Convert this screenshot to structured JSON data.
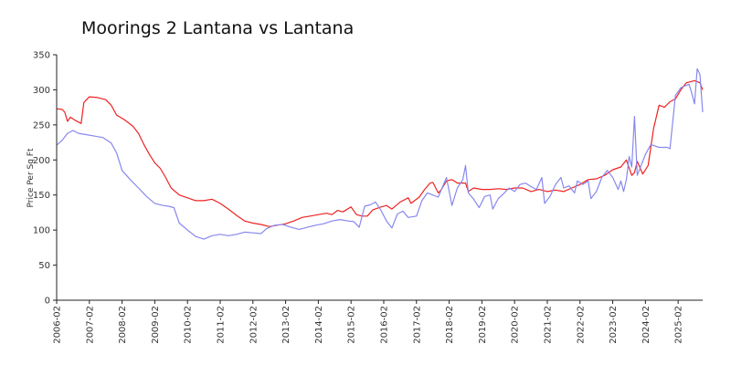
{
  "chart_data": {
    "type": "line",
    "title": "Moorings 2 Lantana vs Lantana",
    "xlabel": "",
    "ylabel": "Price Per Sq Ft",
    "ylim": [
      0,
      350
    ],
    "xlim": [
      "2006-02",
      "2025-11"
    ],
    "grid": false,
    "legend": "none",
    "y_ticks": [
      0,
      50,
      100,
      150,
      200,
      250,
      300,
      350
    ],
    "x_ticks": [
      "2006-02",
      "2007-02",
      "2008-02",
      "2009-02",
      "2010-02",
      "2011-02",
      "2012-02",
      "2013-02",
      "2014-02",
      "2015-02",
      "2016-02",
      "2017-02",
      "2018-02",
      "2019-02",
      "2020-02",
      "2021-02",
      "2022-02",
      "2023-02",
      "2024-02",
      "2025-02"
    ],
    "series": [
      {
        "color": "#ee2222",
        "points": [
          [
            "2006-02",
            273
          ],
          [
            "2006-04",
            272
          ],
          [
            "2006-05",
            268
          ],
          [
            "2006-06",
            255
          ],
          [
            "2006-07",
            261
          ],
          [
            "2006-09",
            256
          ],
          [
            "2006-11",
            252
          ],
          [
            "2006-12",
            282
          ],
          [
            "2007-02",
            290
          ],
          [
            "2007-05",
            289
          ],
          [
            "2007-08",
            286
          ],
          [
            "2007-10",
            278
          ],
          [
            "2007-12",
            264
          ],
          [
            "2008-03",
            257
          ],
          [
            "2008-06",
            248
          ],
          [
            "2008-08",
            238
          ],
          [
            "2008-10",
            222
          ],
          [
            "2008-12",
            208
          ],
          [
            "2009-02",
            196
          ],
          [
            "2009-04",
            188
          ],
          [
            "2009-06",
            175
          ],
          [
            "2009-08",
            160
          ],
          [
            "2009-11",
            150
          ],
          [
            "2010-02",
            146
          ],
          [
            "2010-05",
            142
          ],
          [
            "2010-08",
            142
          ],
          [
            "2010-11",
            144
          ],
          [
            "2011-02",
            138
          ],
          [
            "2011-05",
            130
          ],
          [
            "2011-08",
            121
          ],
          [
            "2011-11",
            113
          ],
          [
            "2012-02",
            110
          ],
          [
            "2012-05",
            108
          ],
          [
            "2012-08",
            105
          ],
          [
            "2012-11",
            107
          ],
          [
            "2013-02",
            109
          ],
          [
            "2013-05",
            113
          ],
          [
            "2013-08",
            118
          ],
          [
            "2013-11",
            120
          ],
          [
            "2014-02",
            122
          ],
          [
            "2014-05",
            124
          ],
          [
            "2014-07",
            122
          ],
          [
            "2014-09",
            128
          ],
          [
            "2014-11",
            126
          ],
          [
            "2015-02",
            133
          ],
          [
            "2015-04",
            122
          ],
          [
            "2015-06",
            120
          ],
          [
            "2015-08",
            120
          ],
          [
            "2015-10",
            129
          ],
          [
            "2016-01",
            133
          ],
          [
            "2016-03",
            135
          ],
          [
            "2016-05",
            130
          ],
          [
            "2016-08",
            140
          ],
          [
            "2016-11",
            146
          ],
          [
            "2016-12",
            138
          ],
          [
            "2017-03",
            147
          ],
          [
            "2017-05",
            158
          ],
          [
            "2017-07",
            167
          ],
          [
            "2017-08",
            168
          ],
          [
            "2017-10",
            153
          ],
          [
            "2017-11",
            157
          ],
          [
            "2018-01",
            170
          ],
          [
            "2018-03",
            172
          ],
          [
            "2018-05",
            167
          ],
          [
            "2018-08",
            167
          ],
          [
            "2018-09",
            155
          ],
          [
            "2018-11",
            160
          ],
          [
            "2019-02",
            158
          ],
          [
            "2019-05",
            158
          ],
          [
            "2019-08",
            159
          ],
          [
            "2019-11",
            158
          ],
          [
            "2020-02",
            160
          ],
          [
            "2020-05",
            160
          ],
          [
            "2020-08",
            155
          ],
          [
            "2020-11",
            158
          ],
          [
            "2021-02",
            155
          ],
          [
            "2021-05",
            157
          ],
          [
            "2021-08",
            155
          ],
          [
            "2021-11",
            160
          ],
          [
            "2022-02",
            165
          ],
          [
            "2022-05",
            172
          ],
          [
            "2022-08",
            173
          ],
          [
            "2022-11",
            178
          ],
          [
            "2023-02",
            186
          ],
          [
            "2023-05",
            190
          ],
          [
            "2023-07",
            200
          ],
          [
            "2023-09",
            178
          ],
          [
            "2023-10",
            182
          ],
          [
            "2023-11",
            198
          ],
          [
            "2024-01",
            180
          ],
          [
            "2024-03",
            192
          ],
          [
            "2024-05",
            245
          ],
          [
            "2024-07",
            278
          ],
          [
            "2024-09",
            275
          ],
          [
            "2024-11",
            283
          ],
          [
            "2025-01",
            287
          ],
          [
            "2025-03",
            300
          ],
          [
            "2025-05",
            310
          ],
          [
            "2025-08",
            313
          ],
          [
            "2025-10",
            310
          ],
          [
            "2025-11",
            300
          ]
        ]
      },
      {
        "color": "#8888ee",
        "points": [
          [
            "2006-02",
            221
          ],
          [
            "2006-04",
            228
          ],
          [
            "2006-06",
            238
          ],
          [
            "2006-08",
            242
          ],
          [
            "2006-10",
            238
          ],
          [
            "2007-01",
            236
          ],
          [
            "2007-04",
            234
          ],
          [
            "2007-07",
            232
          ],
          [
            "2007-10",
            224
          ],
          [
            "2007-12",
            210
          ],
          [
            "2008-02",
            185
          ],
          [
            "2008-05",
            172
          ],
          [
            "2008-08",
            160
          ],
          [
            "2008-11",
            148
          ],
          [
            "2009-02",
            138
          ],
          [
            "2009-05",
            135
          ],
          [
            "2009-07",
            134
          ],
          [
            "2009-09",
            132
          ],
          [
            "2009-11",
            110
          ],
          [
            "2010-02",
            100
          ],
          [
            "2010-05",
            91
          ],
          [
            "2010-08",
            87
          ],
          [
            "2010-11",
            92
          ],
          [
            "2011-02",
            94
          ],
          [
            "2011-05",
            92
          ],
          [
            "2011-08",
            94
          ],
          [
            "2011-11",
            97
          ],
          [
            "2012-02",
            96
          ],
          [
            "2012-05",
            95
          ],
          [
            "2012-07",
            102
          ],
          [
            "2012-10",
            107
          ],
          [
            "2013-01",
            108
          ],
          [
            "2013-04",
            104
          ],
          [
            "2013-07",
            101
          ],
          [
            "2013-10",
            104
          ],
          [
            "2014-01",
            107
          ],
          [
            "2014-04",
            109
          ],
          [
            "2014-07",
            113
          ],
          [
            "2014-10",
            115
          ],
          [
            "2015-01",
            113
          ],
          [
            "2015-03",
            112
          ],
          [
            "2015-05",
            104
          ],
          [
            "2015-07",
            134
          ],
          [
            "2015-09",
            136
          ],
          [
            "2015-11",
            140
          ],
          [
            "2016-01",
            128
          ],
          [
            "2016-03",
            113
          ],
          [
            "2016-05",
            103
          ],
          [
            "2016-07",
            123
          ],
          [
            "2016-09",
            127
          ],
          [
            "2016-11",
            118
          ],
          [
            "2017-02",
            120
          ],
          [
            "2017-04",
            142
          ],
          [
            "2017-06",
            153
          ],
          [
            "2017-08",
            150
          ],
          [
            "2017-10",
            147
          ],
          [
            "2018-01",
            175
          ],
          [
            "2018-03",
            135
          ],
          [
            "2018-05",
            160
          ],
          [
            "2018-07",
            172
          ],
          [
            "2018-08",
            192
          ],
          [
            "2018-09",
            153
          ],
          [
            "2018-11",
            144
          ],
          [
            "2019-01",
            132
          ],
          [
            "2019-03",
            148
          ],
          [
            "2019-05",
            150
          ],
          [
            "2019-06",
            130
          ],
          [
            "2019-08",
            145
          ],
          [
            "2019-10",
            152
          ],
          [
            "2019-12",
            160
          ],
          [
            "2020-02",
            155
          ],
          [
            "2020-04",
            165
          ],
          [
            "2020-06",
            167
          ],
          [
            "2020-08",
            162
          ],
          [
            "2020-10",
            158
          ],
          [
            "2020-12",
            175
          ],
          [
            "2021-01",
            138
          ],
          [
            "2021-03",
            148
          ],
          [
            "2021-05",
            165
          ],
          [
            "2021-07",
            175
          ],
          [
            "2021-08",
            160
          ],
          [
            "2021-10",
            163
          ],
          [
            "2021-12",
            153
          ],
          [
            "2022-01",
            170
          ],
          [
            "2022-03",
            165
          ],
          [
            "2022-05",
            170
          ],
          [
            "2022-06",
            145
          ],
          [
            "2022-08",
            155
          ],
          [
            "2022-10",
            175
          ],
          [
            "2022-12",
            185
          ],
          [
            "2023-02",
            175
          ],
          [
            "2023-04",
            158
          ],
          [
            "2023-05",
            170
          ],
          [
            "2023-06",
            155
          ],
          [
            "2023-07",
            172
          ],
          [
            "2023-08",
            205
          ],
          [
            "2023-09",
            190
          ],
          [
            "2023-10",
            262
          ],
          [
            "2023-11",
            178
          ],
          [
            "2024-02",
            208
          ],
          [
            "2024-04",
            222
          ],
          [
            "2024-07",
            218
          ],
          [
            "2024-10",
            218
          ],
          [
            "2024-11",
            216
          ],
          [
            "2025-01",
            292
          ],
          [
            "2025-03",
            303
          ],
          [
            "2025-06",
            308
          ],
          [
            "2025-07",
            295
          ],
          [
            "2025-08",
            280
          ],
          [
            "2025-09",
            330
          ],
          [
            "2025-10",
            322
          ],
          [
            "2025-11",
            268
          ]
        ]
      }
    ]
  }
}
